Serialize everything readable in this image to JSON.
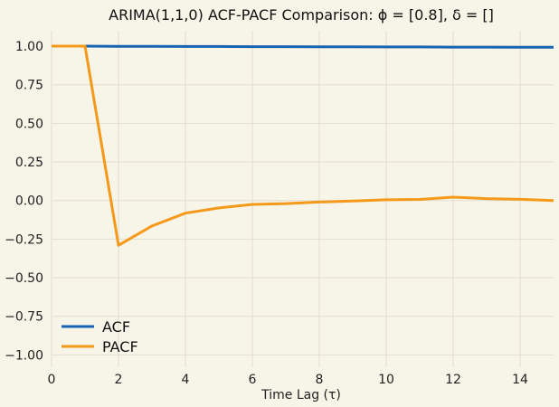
{
  "chart_data": {
    "type": "line",
    "title": "ARIMA(1,1,0) ACF-PACF Comparison: ϕ = [0.8], δ = []",
    "xlabel": "Time Lag (τ)",
    "ylabel": "",
    "xlim": [
      0,
      15
    ],
    "ylim": [
      -1.08,
      1.1
    ],
    "x_ticks": [
      0,
      2,
      4,
      6,
      8,
      10,
      12,
      14
    ],
    "x_tick_labels": [
      "0",
      "2",
      "4",
      "6",
      "8",
      "10",
      "12",
      "14"
    ],
    "y_ticks": [
      1.0,
      0.75,
      0.5,
      0.25,
      0.0,
      -0.25,
      -0.5,
      -0.75,
      -1.0
    ],
    "y_tick_labels": [
      "1.00",
      "0.75",
      "0.50",
      "0.25",
      "0.00",
      "−0.25",
      "−0.50",
      "−0.75",
      "−1.00"
    ],
    "grid": true,
    "legend_position": "bottom-left",
    "series": [
      {
        "name": "ACF",
        "color": "#1764b4",
        "x": [
          0,
          1,
          2,
          3,
          4,
          5,
          6,
          7,
          8,
          9,
          10,
          11,
          12,
          13,
          14,
          15
        ],
        "values": [
          1.0,
          1.0,
          0.999,
          0.999,
          0.998,
          0.998,
          0.997,
          0.997,
          0.996,
          0.996,
          0.995,
          0.995,
          0.994,
          0.994,
          0.993,
          0.993
        ]
      },
      {
        "name": "PACF",
        "color": "#f5991a",
        "x": [
          0,
          1,
          2,
          3,
          4,
          5,
          6,
          7,
          8,
          9,
          10,
          11,
          12,
          13,
          14,
          15
        ],
        "values": [
          1.0,
          1.0,
          -0.29,
          -0.165,
          -0.082,
          -0.048,
          -0.025,
          -0.02,
          -0.01,
          -0.003,
          0.005,
          0.007,
          0.022,
          0.012,
          0.008,
          0.0
        ]
      }
    ]
  },
  "colors": {
    "background": "#f7f4e8",
    "grid": "#e2ddd0",
    "acf": "#1764b4",
    "pacf": "#f5991a"
  }
}
